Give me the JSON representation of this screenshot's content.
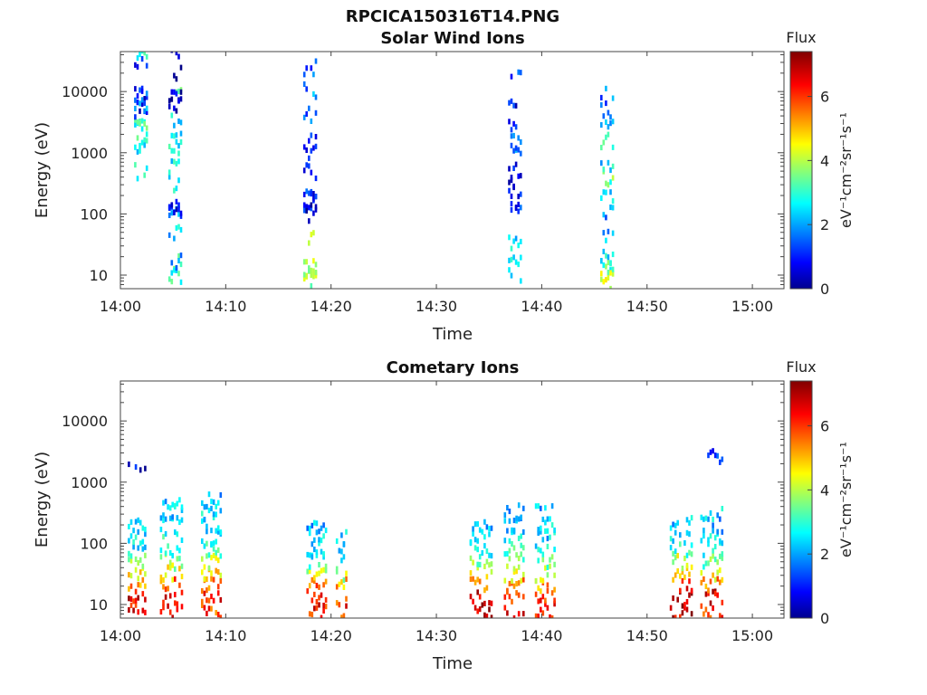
{
  "figure_title": "RPCICA150316T14.PNG",
  "chart_data": [
    {
      "type": "heatmap",
      "title": "Solar Wind Ions",
      "xlabel": "Time",
      "ylabel": "Energy (eV)",
      "x_scale": "time",
      "y_scale": "log",
      "xlim": [
        "14:00",
        "15:03"
      ],
      "ylim": [
        6,
        45000
      ],
      "x_ticks": [
        "14:00",
        "14:10",
        "14:20",
        "14:30",
        "14:40",
        "14:50",
        "15:00"
      ],
      "y_ticks": [
        "10",
        "100",
        "1000",
        "10000"
      ],
      "colorbar": {
        "label": "Flux",
        "units": "eV⁻¹cm⁻²sr⁻¹s⁻¹",
        "range": [
          0,
          7.4
        ],
        "ticks": [
          "0",
          "2",
          "4",
          "6"
        ],
        "colormap": "jet"
      },
      "clusters": [
        {
          "time_min": 2.0,
          "width_min": 1.4,
          "points": [
            [
              4.6,
              3.0
            ],
            [
              4.8,
              3.0
            ],
            [
              3.5,
              3.0
            ],
            [
              3.2,
              3.0
            ],
            [
              3.5,
              3.3
            ],
            [
              3.1,
              2.8
            ],
            [
              2.7,
              3.0
            ],
            [
              4.5,
              0.8
            ],
            [
              4.0,
              0.9
            ],
            [
              3.7,
              0.7
            ],
            [
              3.9,
              1.4
            ],
            [
              3.8,
              2.2
            ]
          ]
        },
        {
          "time_min": 5.2,
          "width_min": 1.3,
          "points": [
            [
              1.0,
              3.2
            ],
            [
              1.2,
              4.0
            ],
            [
              1.1,
              2.6
            ],
            [
              1.2,
              2.2
            ],
            [
              1.7,
              2.5
            ],
            [
              2.0,
              1.8
            ],
            [
              2.0,
              0.9
            ],
            [
              2.1,
              0.6
            ],
            [
              2.5,
              3.0
            ],
            [
              2.8,
              2.7
            ],
            [
              3.1,
              2.9
            ],
            [
              3.2,
              2.8
            ],
            [
              3.5,
              2.6
            ],
            [
              4.0,
              3.1
            ],
            [
              4.6,
              0.7
            ],
            [
              4.3,
              0.6
            ],
            [
              3.8,
              0.6
            ],
            [
              3.9,
              0.5
            ]
          ]
        },
        {
          "time_min": 18.0,
          "width_min": 1.3,
          "points": [
            [
              0.9,
              4.0
            ],
            [
              1.0,
              4.4
            ],
            [
              1.2,
              4.0
            ],
            [
              1.1,
              4.1
            ],
            [
              1.6,
              4.0
            ],
            [
              2.0,
              1.0
            ],
            [
              2.1,
              0.8
            ],
            [
              2.3,
              0.9
            ],
            [
              2.3,
              1.3
            ],
            [
              2.7,
              0.7
            ],
            [
              3.0,
              1.0
            ],
            [
              3.2,
              1.3
            ],
            [
              3.6,
              1.6
            ],
            [
              4.0,
              1.8
            ],
            [
              4.4,
              1.5
            ]
          ]
        },
        {
          "time_min": 37.5,
          "width_min": 1.4,
          "points": [
            [
              1.0,
              3.0
            ],
            [
              1.2,
              2.8
            ],
            [
              1.5,
              2.5
            ],
            [
              2.0,
              1.2
            ],
            [
              2.2,
              0.9
            ],
            [
              2.4,
              0.8
            ],
            [
              2.5,
              0.7
            ],
            [
              2.7,
              1.1
            ],
            [
              3.0,
              2.0
            ],
            [
              3.2,
              1.6
            ],
            [
              3.5,
              1.4
            ],
            [
              3.8,
              1.0
            ],
            [
              4.2,
              1.3
            ]
          ]
        },
        {
          "time_min": 46.2,
          "width_min": 1.3,
          "points": [
            [
              0.9,
              4.6
            ],
            [
              1.0,
              3.3
            ],
            [
              1.1,
              4.5
            ],
            [
              1.2,
              2.8
            ],
            [
              1.3,
              2.5
            ],
            [
              1.6,
              2.3
            ],
            [
              2.0,
              2.0
            ],
            [
              2.3,
              2.5
            ],
            [
              2.6,
              3.5
            ],
            [
              2.8,
              2.6
            ],
            [
              3.2,
              3.0
            ],
            [
              3.4,
              2.1
            ],
            [
              3.7,
              1.6
            ],
            [
              4.0,
              1.8
            ]
          ]
        }
      ]
    },
    {
      "type": "heatmap",
      "title": "Cometary Ions",
      "xlabel": "Time",
      "ylabel": "Energy (eV)",
      "x_scale": "time",
      "y_scale": "log",
      "xlim": [
        "14:00",
        "15:03"
      ],
      "ylim": [
        6,
        45000
      ],
      "x_ticks": [
        "14:00",
        "14:10",
        "14:20",
        "14:30",
        "14:40",
        "14:50",
        "15:00"
      ],
      "y_ticks": [
        "10",
        "100",
        "1000",
        "10000"
      ],
      "colorbar": {
        "label": "Flux",
        "units": "eV⁻¹cm⁻²sr⁻¹s⁻¹",
        "range": [
          0,
          7.4
        ],
        "ticks": [
          "0",
          "2",
          "4",
          "6"
        ],
        "colormap": "jet"
      },
      "clusters": [
        {
          "time_min": 1.6,
          "width_min": 1.8,
          "points": [
            [
              0.9,
              6.4
            ],
            [
              1.1,
              6.6
            ],
            [
              1.3,
              5.6
            ],
            [
              1.5,
              4.6
            ],
            [
              1.7,
              3.6
            ],
            [
              1.9,
              2.8
            ],
            [
              2.1,
              2.6
            ],
            [
              2.3,
              2.4
            ],
            [
              3.2,
              0.8
            ]
          ]
        },
        {
          "time_min": 4.9,
          "width_min": 2.3,
          "points": [
            [
              0.9,
              6.6
            ],
            [
              1.1,
              6.5
            ],
            [
              1.3,
              5.7
            ],
            [
              1.5,
              4.6
            ],
            [
              1.7,
              4.0
            ],
            [
              1.9,
              3.2
            ],
            [
              2.1,
              2.9
            ],
            [
              2.3,
              2.5
            ],
            [
              2.5,
              2.3
            ],
            [
              2.7,
              2.5
            ]
          ]
        },
        {
          "time_min": 8.6,
          "width_min": 1.9,
          "points": [
            [
              0.9,
              6.0
            ],
            [
              1.1,
              6.3
            ],
            [
              1.3,
              5.6
            ],
            [
              1.5,
              4.8
            ],
            [
              1.7,
              4.2
            ],
            [
              1.9,
              3.0
            ],
            [
              2.1,
              2.6
            ],
            [
              2.3,
              2.4
            ],
            [
              2.5,
              2.6
            ],
            [
              2.7,
              2.3
            ]
          ]
        },
        {
          "time_min": 18.6,
          "width_min": 1.9,
          "points": [
            [
              0.9,
              6.4
            ],
            [
              1.1,
              6.3
            ],
            [
              1.3,
              5.6
            ],
            [
              1.5,
              4.2
            ],
            [
              1.7,
              3.2
            ],
            [
              1.9,
              2.6
            ],
            [
              2.1,
              2.4
            ],
            [
              2.3,
              2.2
            ]
          ]
        },
        {
          "time_min": 21.0,
          "width_min": 1.1,
          "points": [
            [
              0.9,
              6.2
            ],
            [
              1.1,
              6.0
            ],
            [
              1.3,
              5.2
            ],
            [
              1.5,
              4.0
            ],
            [
              1.7,
              3.0
            ],
            [
              1.9,
              2.6
            ],
            [
              2.1,
              2.4
            ]
          ]
        },
        {
          "time_min": 34.3,
          "width_min": 2.3,
          "points": [
            [
              0.9,
              6.8
            ],
            [
              1.1,
              6.6
            ],
            [
              1.3,
              5.7
            ],
            [
              1.5,
              4.6
            ],
            [
              1.7,
              3.8
            ],
            [
              1.9,
              3.0
            ],
            [
              2.1,
              2.6
            ],
            [
              2.3,
              2.4
            ]
          ]
        },
        {
          "time_min": 37.4,
          "width_min": 2.0,
          "points": [
            [
              0.9,
              6.3
            ],
            [
              1.1,
              6.1
            ],
            [
              1.3,
              5.3
            ],
            [
              1.5,
              4.3
            ],
            [
              1.7,
              3.6
            ],
            [
              1.9,
              3.0
            ],
            [
              2.1,
              2.5
            ],
            [
              2.3,
              2.4
            ],
            [
              2.5,
              2.2
            ]
          ]
        },
        {
          "time_min": 40.3,
          "width_min": 1.9,
          "points": [
            [
              0.9,
              6.5
            ],
            [
              1.1,
              6.2
            ],
            [
              1.3,
              5.4
            ],
            [
              1.5,
              4.4
            ],
            [
              1.7,
              3.5
            ],
            [
              1.9,
              2.8
            ],
            [
              2.1,
              2.5
            ],
            [
              2.3,
              2.6
            ],
            [
              2.5,
              2.3
            ]
          ]
        },
        {
          "time_min": 53.3,
          "width_min": 2.3,
          "points": [
            [
              0.9,
              6.8
            ],
            [
              1.1,
              7.0
            ],
            [
              1.3,
              6.4
            ],
            [
              1.5,
              5.0
            ],
            [
              1.7,
              4.2
            ],
            [
              1.9,
              3.2
            ],
            [
              2.1,
              2.6
            ],
            [
              2.3,
              2.4
            ]
          ]
        },
        {
          "time_min": 56.2,
          "width_min": 2.3,
          "points": [
            [
              0.9,
              6.2
            ],
            [
              1.1,
              6.6
            ],
            [
              1.3,
              5.7
            ],
            [
              1.5,
              4.6
            ],
            [
              1.7,
              3.6
            ],
            [
              1.9,
              2.8
            ],
            [
              2.1,
              2.5
            ],
            [
              2.3,
              2.3
            ],
            [
              2.5,
              2.5
            ],
            [
              3.4,
              1.2
            ]
          ]
        }
      ]
    }
  ]
}
